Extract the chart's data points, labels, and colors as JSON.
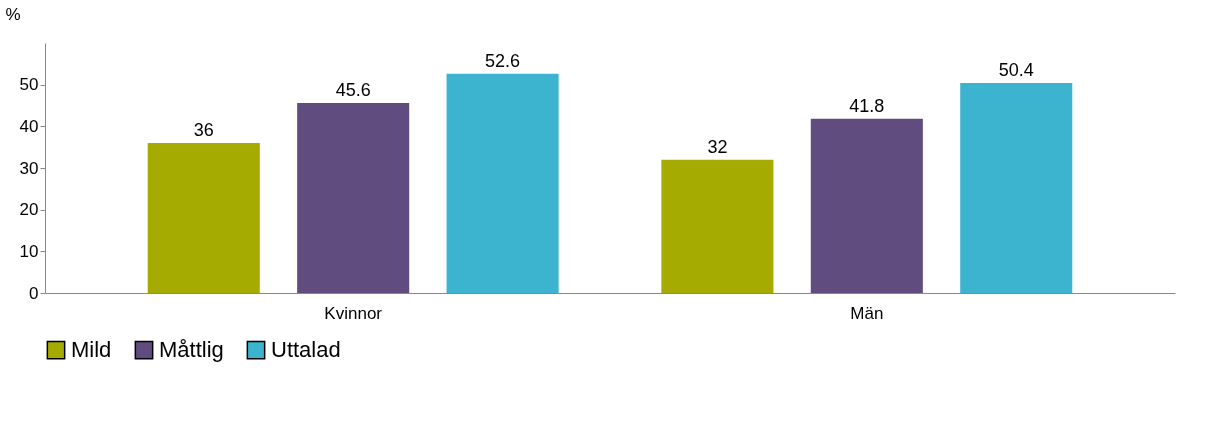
{
  "chart_data": {
    "type": "bar",
    "ylabel": "%",
    "categories": [
      "Kvinnor",
      "Män"
    ],
    "series": [
      {
        "name": "Mild",
        "color": "#a5ab00",
        "values": [
          36,
          32
        ]
      },
      {
        "name": "Måttlig",
        "color": "#604c7e",
        "values": [
          45.6,
          41.8
        ]
      },
      {
        "name": "Uttalad",
        "color": "#3cb4cf",
        "values": [
          52.6,
          50.4
        ]
      }
    ],
    "ylim": [
      0,
      60
    ],
    "yticks": [
      0,
      10,
      20,
      30,
      40,
      50
    ],
    "grid": false,
    "legend": "bottom",
    "data_labels": true
  }
}
